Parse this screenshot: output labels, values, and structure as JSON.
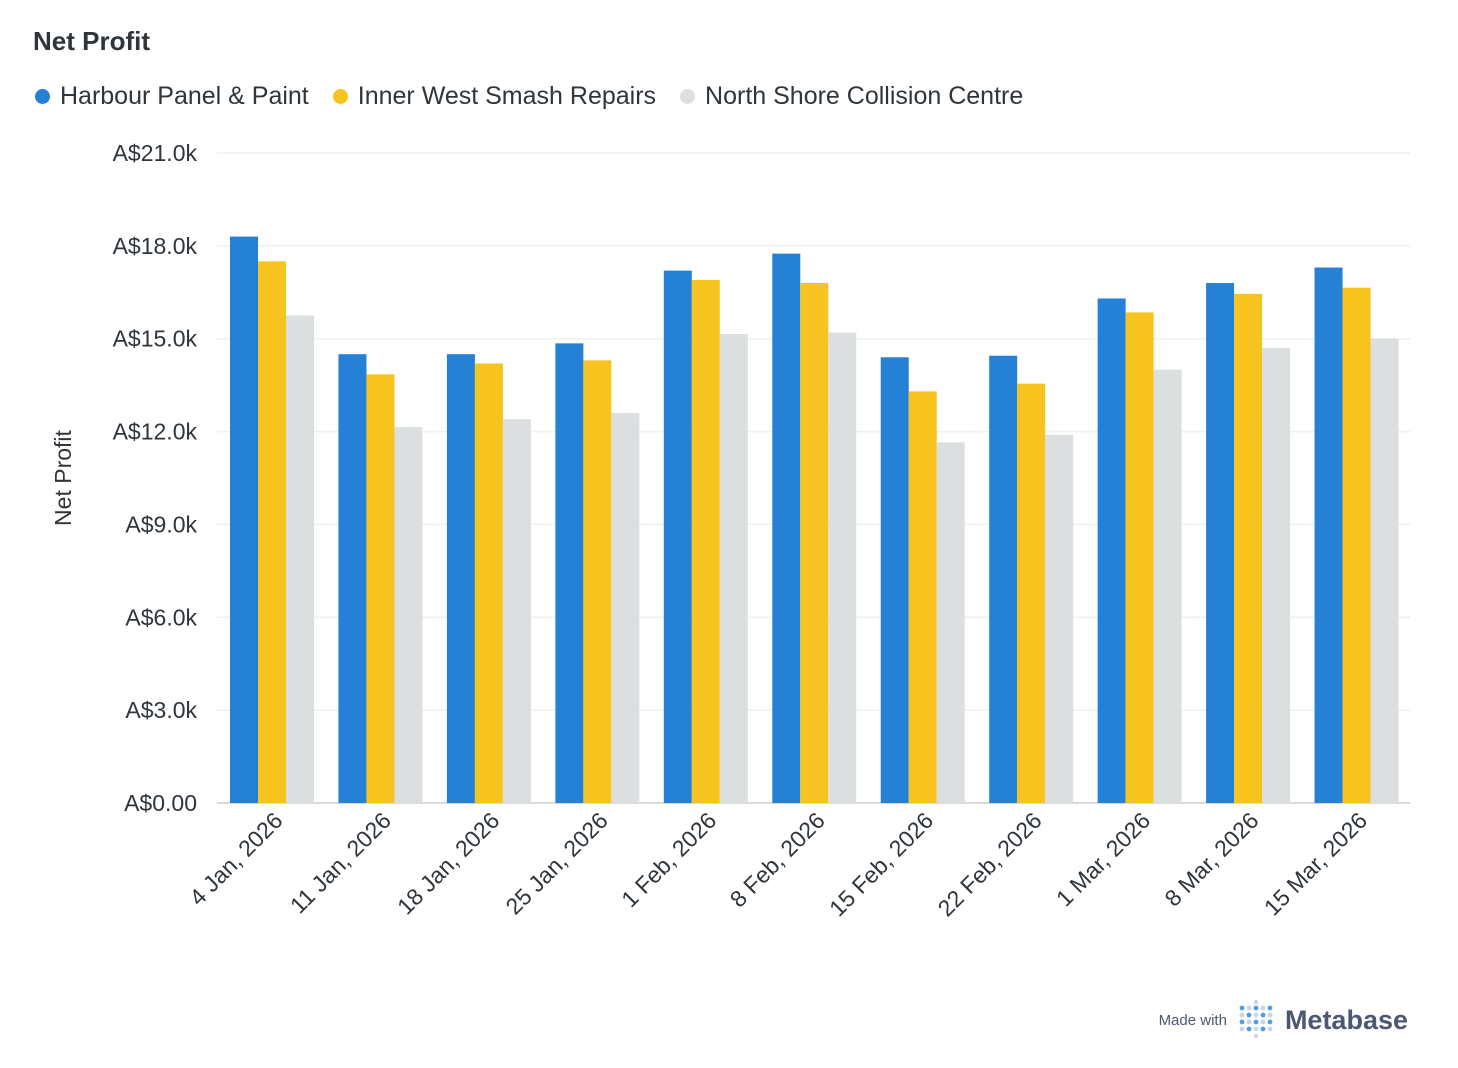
{
  "chart_data": {
    "type": "bar",
    "title": "Net Profit",
    "ylabel": "Net Profit",
    "xlabel": "",
    "ylim": [
      0,
      21000
    ],
    "yticks": [
      0,
      3000,
      6000,
      9000,
      12000,
      15000,
      18000,
      21000
    ],
    "ytick_labels": [
      "A$0.00",
      "A$3.0k",
      "A$6.0k",
      "A$9.0k",
      "A$12.0k",
      "A$15.0k",
      "A$18.0k",
      "A$21.0k"
    ],
    "grid": true,
    "legend_position": "top-left",
    "categories": [
      "4 Jan, 2026",
      "11 Jan, 2026",
      "18 Jan, 2026",
      "25 Jan, 2026",
      "1 Feb, 2026",
      "8 Feb, 2026",
      "15 Feb, 2026",
      "22 Feb, 2026",
      "1 Mar, 2026",
      "8 Mar, 2026",
      "15 Mar, 2026"
    ],
    "series": [
      {
        "name": "Harbour Panel & Paint",
        "color": "#2581d6",
        "values": [
          18300,
          14500,
          14500,
          14850,
          17200,
          17750,
          14400,
          14450,
          16300,
          16800,
          17300
        ]
      },
      {
        "name": "Inner West Smash Repairs",
        "color": "#f7c41f",
        "values": [
          17500,
          13850,
          14200,
          14300,
          16900,
          16800,
          13300,
          13550,
          15850,
          16450,
          16650
        ]
      },
      {
        "name": "North Shore Collision Centre",
        "color": "#dcdfe0",
        "values": [
          15750,
          12150,
          12400,
          12600,
          15150,
          15200,
          11650,
          11900,
          14000,
          14700,
          15000
        ]
      }
    ]
  },
  "footer": {
    "made_with": "Made with",
    "brand": "Metabase"
  }
}
